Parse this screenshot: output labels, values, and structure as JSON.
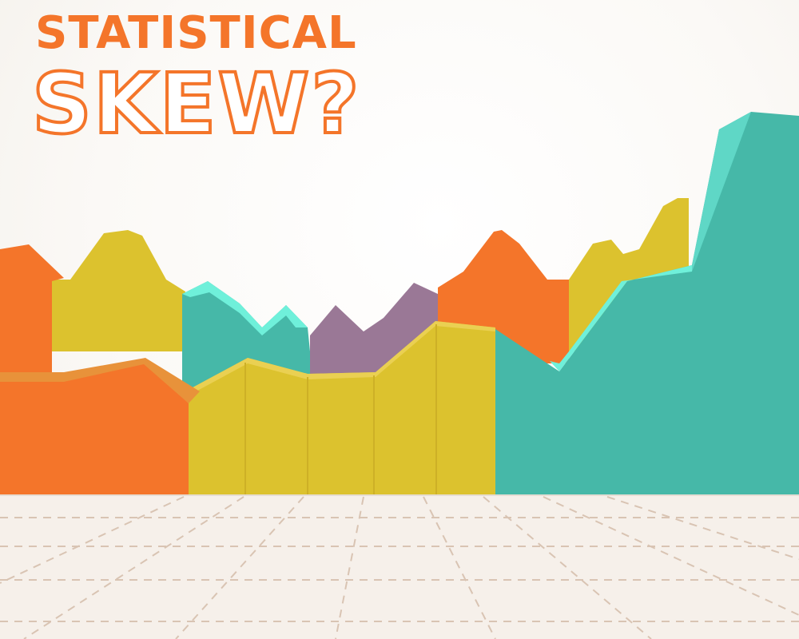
{
  "title": {
    "line1": "STATISTICAL",
    "line2": "SKEW?"
  },
  "colors": {
    "orange": "#f4752a",
    "yellow": "#dcc22e",
    "teal": "#46b8a8",
    "purple": "#9a7896",
    "floor": "#f5efe9"
  }
}
